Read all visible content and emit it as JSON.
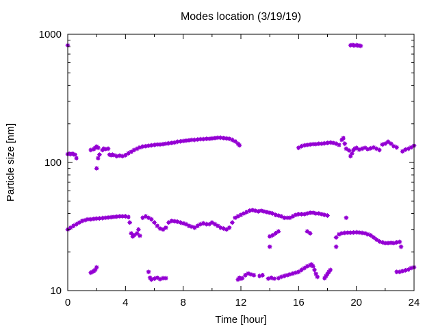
{
  "chart_data": {
    "type": "scatter",
    "title": "Modes location (3/19/19)",
    "xlabel": "Time [hour]",
    "ylabel": "Particle size [nm]",
    "xlim": [
      0,
      24
    ],
    "ylim": [
      10,
      1000
    ],
    "yscale": "log",
    "x_ticks": [
      0,
      4,
      8,
      12,
      16,
      20,
      24
    ],
    "y_ticks": [
      10,
      100,
      1000
    ],
    "x_minor_ticks": [
      2,
      6,
      10,
      14,
      18,
      22
    ],
    "grid": false,
    "legend": "none",
    "marker_color": "#9400d3",
    "series": [
      {
        "points": [
          [
            0.0,
            820
          ],
          [
            19.6,
            820
          ],
          [
            19.7,
            825
          ],
          [
            19.8,
            820
          ],
          [
            19.9,
            818
          ],
          [
            20.0,
            822
          ],
          [
            20.1,
            818
          ],
          [
            20.2,
            815
          ],
          [
            20.3,
            812
          ],
          [
            0.0,
            116
          ],
          [
            0.1,
            117
          ],
          [
            0.2,
            116
          ],
          [
            0.3,
            117
          ],
          [
            0.4,
            116
          ],
          [
            0.5,
            115
          ],
          [
            0.6,
            108
          ],
          [
            1.6,
            125
          ],
          [
            1.8,
            127
          ],
          [
            1.9,
            130
          ],
          [
            2.0,
            133
          ],
          [
            2.1,
            130
          ],
          [
            2.0,
            90
          ],
          [
            2.1,
            108
          ],
          [
            2.2,
            115
          ],
          [
            2.4,
            125
          ],
          [
            2.5,
            128
          ],
          [
            2.6,
            127
          ],
          [
            2.8,
            128
          ],
          [
            2.9,
            115
          ],
          [
            3.0,
            114
          ],
          [
            3.1,
            115
          ],
          [
            3.2,
            114
          ],
          [
            3.4,
            112
          ],
          [
            3.6,
            113
          ],
          [
            3.8,
            112
          ],
          [
            4.0,
            114
          ],
          [
            4.2,
            118
          ],
          [
            4.4,
            121
          ],
          [
            4.6,
            125
          ],
          [
            4.8,
            128
          ],
          [
            5.0,
            131
          ],
          [
            5.2,
            133
          ],
          [
            5.4,
            134
          ],
          [
            5.6,
            135
          ],
          [
            5.8,
            136
          ],
          [
            6.0,
            137
          ],
          [
            6.2,
            138
          ],
          [
            6.4,
            138
          ],
          [
            6.6,
            139
          ],
          [
            6.8,
            140
          ],
          [
            7.0,
            141
          ],
          [
            7.2,
            142
          ],
          [
            7.4,
            143
          ],
          [
            7.6,
            145
          ],
          [
            7.8,
            146
          ],
          [
            8.0,
            147
          ],
          [
            8.2,
            148
          ],
          [
            8.4,
            149
          ],
          [
            8.6,
            150
          ],
          [
            8.8,
            150
          ],
          [
            9.0,
            151
          ],
          [
            9.2,
            152
          ],
          [
            9.4,
            152
          ],
          [
            9.6,
            153
          ],
          [
            9.8,
            153
          ],
          [
            10.0,
            154
          ],
          [
            10.2,
            155
          ],
          [
            10.4,
            156
          ],
          [
            10.6,
            156
          ],
          [
            10.8,
            155
          ],
          [
            11.0,
            154
          ],
          [
            11.2,
            153
          ],
          [
            11.4,
            150
          ],
          [
            11.6,
            146
          ],
          [
            11.8,
            140
          ],
          [
            11.9,
            136
          ],
          [
            16.0,
            130
          ],
          [
            16.2,
            134
          ],
          [
            16.4,
            136
          ],
          [
            16.6,
            137
          ],
          [
            16.8,
            138
          ],
          [
            17.0,
            139
          ],
          [
            17.2,
            139
          ],
          [
            17.4,
            140
          ],
          [
            17.6,
            140
          ],
          [
            17.8,
            141
          ],
          [
            18.0,
            142
          ],
          [
            18.2,
            143
          ],
          [
            18.4,
            142
          ],
          [
            18.6,
            140
          ],
          [
            18.8,
            137
          ],
          [
            19.0,
            150
          ],
          [
            19.1,
            155
          ],
          [
            19.2,
            140
          ],
          [
            19.3,
            128
          ],
          [
            19.5,
            124
          ],
          [
            19.6,
            112
          ],
          [
            19.7,
            118
          ],
          [
            19.8,
            125
          ],
          [
            19.9,
            128
          ],
          [
            20.0,
            130
          ],
          [
            20.2,
            126
          ],
          [
            20.4,
            128
          ],
          [
            20.6,
            130
          ],
          [
            20.8,
            127
          ],
          [
            21.0,
            129
          ],
          [
            21.2,
            131
          ],
          [
            21.4,
            128
          ],
          [
            21.6,
            125
          ],
          [
            21.8,
            138
          ],
          [
            22.0,
            140
          ],
          [
            22.2,
            145
          ],
          [
            22.4,
            140
          ],
          [
            22.6,
            134
          ],
          [
            22.8,
            131
          ],
          [
            23.2,
            122
          ],
          [
            23.4,
            126
          ],
          [
            23.6,
            128
          ],
          [
            23.8,
            131
          ],
          [
            24.0,
            135
          ],
          [
            0.0,
            30
          ],
          [
            0.2,
            31
          ],
          [
            0.4,
            32
          ],
          [
            0.6,
            33
          ],
          [
            0.8,
            34
          ],
          [
            1.0,
            35
          ],
          [
            1.2,
            35.5
          ],
          [
            1.4,
            36
          ],
          [
            1.6,
            36
          ],
          [
            1.8,
            36.3
          ],
          [
            2.0,
            36.5
          ],
          [
            2.2,
            36.6
          ],
          [
            2.4,
            36.8
          ],
          [
            2.6,
            37
          ],
          [
            2.8,
            37.2
          ],
          [
            3.0,
            37.4
          ],
          [
            3.2,
            37.6
          ],
          [
            3.4,
            37.8
          ],
          [
            3.6,
            38
          ],
          [
            3.8,
            38
          ],
          [
            4.0,
            38
          ],
          [
            4.2,
            37.5
          ],
          [
            4.3,
            34
          ],
          [
            4.4,
            28
          ],
          [
            4.5,
            26.5
          ],
          [
            4.6,
            27
          ],
          [
            4.8,
            28
          ],
          [
            4.9,
            30
          ],
          [
            5.0,
            26.8
          ],
          [
            5.2,
            37
          ],
          [
            5.4,
            38
          ],
          [
            5.6,
            37
          ],
          [
            5.8,
            36
          ],
          [
            6.0,
            34
          ],
          [
            6.2,
            32
          ],
          [
            6.4,
            30.5
          ],
          [
            6.6,
            30
          ],
          [
            6.8,
            31
          ],
          [
            7.0,
            34
          ],
          [
            7.2,
            35
          ],
          [
            7.4,
            34.8
          ],
          [
            7.6,
            34.5
          ],
          [
            7.8,
            34
          ],
          [
            8.0,
            33.5
          ],
          [
            8.2,
            33
          ],
          [
            8.4,
            32
          ],
          [
            8.6,
            31.5
          ],
          [
            8.8,
            31
          ],
          [
            9.0,
            32
          ],
          [
            9.2,
            33
          ],
          [
            9.4,
            33.5
          ],
          [
            9.6,
            33
          ],
          [
            9.8,
            33
          ],
          [
            10.0,
            34
          ],
          [
            10.2,
            33
          ],
          [
            10.4,
            32
          ],
          [
            10.6,
            31
          ],
          [
            10.8,
            30.5
          ],
          [
            11.0,
            30
          ],
          [
            11.2,
            31
          ],
          [
            11.4,
            34
          ],
          [
            11.6,
            37
          ],
          [
            11.8,
            38
          ],
          [
            12.0,
            39
          ],
          [
            12.2,
            40
          ],
          [
            12.4,
            41
          ],
          [
            12.6,
            42
          ],
          [
            12.8,
            42.5
          ],
          [
            13.0,
            42
          ],
          [
            13.2,
            41.5
          ],
          [
            13.4,
            42
          ],
          [
            13.6,
            41.5
          ],
          [
            13.8,
            41
          ],
          [
            14.0,
            40.5
          ],
          [
            14.2,
            40
          ],
          [
            14.4,
            39
          ],
          [
            14.6,
            38.5
          ],
          [
            14.8,
            38
          ],
          [
            15.0,
            37
          ],
          [
            15.2,
            37
          ],
          [
            15.4,
            37
          ],
          [
            15.6,
            38
          ],
          [
            15.8,
            39
          ],
          [
            16.0,
            39.5
          ],
          [
            16.2,
            39.5
          ],
          [
            16.4,
            39.5
          ],
          [
            16.6,
            40
          ],
          [
            16.8,
            40.5
          ],
          [
            17.0,
            40.5
          ],
          [
            17.2,
            40
          ],
          [
            17.4,
            40
          ],
          [
            17.6,
            39.5
          ],
          [
            17.8,
            39
          ],
          [
            18.0,
            38.5
          ],
          [
            14.0,
            22
          ],
          [
            14.0,
            26.5
          ],
          [
            14.2,
            27
          ],
          [
            14.4,
            28
          ],
          [
            14.6,
            29
          ],
          [
            16.6,
            29
          ],
          [
            16.8,
            28
          ],
          [
            18.6,
            22
          ],
          [
            18.6,
            26
          ],
          [
            18.8,
            27.5
          ],
          [
            19.0,
            28
          ],
          [
            19.2,
            28.2
          ],
          [
            19.4,
            28.3
          ],
          [
            19.6,
            28.3
          ],
          [
            19.8,
            28.4
          ],
          [
            20.0,
            28.5
          ],
          [
            20.2,
            28.4
          ],
          [
            20.4,
            28.2
          ],
          [
            20.6,
            28
          ],
          [
            20.8,
            27.5
          ],
          [
            21.0,
            27
          ],
          [
            21.2,
            26
          ],
          [
            21.4,
            25
          ],
          [
            21.6,
            24.2
          ],
          [
            21.8,
            23.8
          ],
          [
            22.0,
            23.5
          ],
          [
            22.2,
            23.5
          ],
          [
            22.4,
            23.6
          ],
          [
            22.6,
            23.5
          ],
          [
            22.8,
            23.8
          ],
          [
            23.0,
            24
          ],
          [
            23.1,
            22
          ],
          [
            19.3,
            37
          ],
          [
            1.6,
            13.8
          ],
          [
            1.7,
            14
          ],
          [
            1.8,
            14.2
          ],
          [
            1.9,
            14.5
          ],
          [
            2.0,
            15.2
          ],
          [
            5.6,
            14
          ],
          [
            5.7,
            12.6
          ],
          [
            5.8,
            12.2
          ],
          [
            6.0,
            12.4
          ],
          [
            6.2,
            12.6
          ],
          [
            6.4,
            12.3
          ],
          [
            6.6,
            12.5
          ],
          [
            6.8,
            12.5
          ],
          [
            11.8,
            12.2
          ],
          [
            11.9,
            12.6
          ],
          [
            12.0,
            12.4
          ],
          [
            12.1,
            12.5
          ],
          [
            12.3,
            13.2
          ],
          [
            12.5,
            13.6
          ],
          [
            12.7,
            13.4
          ],
          [
            12.9,
            13.2
          ],
          [
            13.3,
            13
          ],
          [
            13.5,
            13.2
          ],
          [
            13.9,
            12.4
          ],
          [
            14.1,
            12.6
          ],
          [
            14.3,
            12.4
          ],
          [
            14.6,
            12.5
          ],
          [
            14.8,
            12.8
          ],
          [
            15.0,
            13
          ],
          [
            15.2,
            13.2
          ],
          [
            15.4,
            13.4
          ],
          [
            15.6,
            13.6
          ],
          [
            15.8,
            13.8
          ],
          [
            16.0,
            14
          ],
          [
            16.2,
            14.5
          ],
          [
            16.4,
            15
          ],
          [
            16.6,
            15.5
          ],
          [
            16.8,
            15.8
          ],
          [
            16.9,
            16
          ],
          [
            17.0,
            15.5
          ],
          [
            17.1,
            14.5
          ],
          [
            17.2,
            13.5
          ],
          [
            17.3,
            12.8
          ],
          [
            17.8,
            12.5
          ],
          [
            17.9,
            13
          ],
          [
            18.0,
            13.5
          ],
          [
            18.1,
            14
          ],
          [
            18.2,
            14.5
          ],
          [
            22.8,
            14
          ],
          [
            23.0,
            14
          ],
          [
            23.2,
            14.2
          ],
          [
            23.4,
            14.4
          ],
          [
            23.6,
            14.6
          ],
          [
            23.8,
            15
          ],
          [
            24.0,
            15.2
          ]
        ]
      }
    ]
  }
}
